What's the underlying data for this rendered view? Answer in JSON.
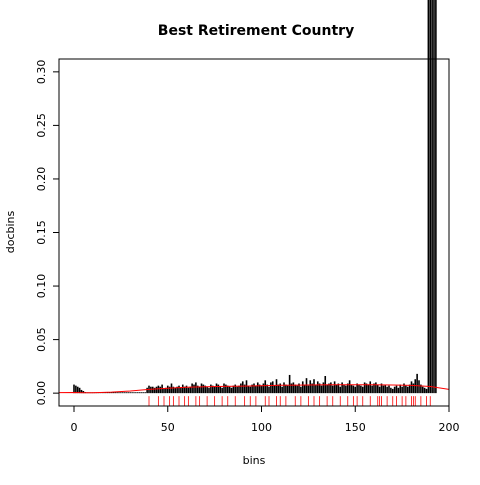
{
  "chart_data": {
    "type": "bar",
    "title": "Best Retirement Country",
    "xlabel": "bins",
    "ylabel": "docbins",
    "xlim": [
      -8,
      200
    ],
    "ylim": [
      -0.012,
      0.312
    ],
    "x_ticks": [
      0,
      50,
      100,
      150,
      200
    ],
    "x_tick_labels": [
      "0",
      "50",
      "100",
      "150",
      "200"
    ],
    "y_ticks": [
      0.0,
      0.05,
      0.1,
      0.15,
      0.2,
      0.25,
      0.3
    ],
    "y_tick_labels": [
      "0.00",
      "0.05",
      "0.10",
      "0.15",
      "0.20",
      "0.25",
      "0.30"
    ],
    "bar_color": "#000000",
    "curve_color": "#ff0000",
    "rug_color": "#ff0000",
    "bins_x": [
      0,
      1,
      2,
      3,
      4,
      5,
      6,
      7,
      8,
      9,
      10,
      11,
      12,
      13,
      14,
      15,
      16,
      17,
      18,
      19,
      20,
      21,
      22,
      23,
      24,
      25,
      26,
      27,
      28,
      29,
      30,
      31,
      32,
      33,
      34,
      35,
      36,
      37,
      38,
      39,
      40,
      41,
      42,
      43,
      44,
      45,
      46,
      47,
      48,
      49,
      50,
      51,
      52,
      53,
      54,
      55,
      56,
      57,
      58,
      59,
      60,
      61,
      62,
      63,
      64,
      65,
      66,
      67,
      68,
      69,
      70,
      71,
      72,
      73,
      74,
      75,
      76,
      77,
      78,
      79,
      80,
      81,
      82,
      83,
      84,
      85,
      86,
      87,
      88,
      89,
      90,
      91,
      92,
      93,
      94,
      95,
      96,
      97,
      98,
      99,
      100,
      101,
      102,
      103,
      104,
      105,
      106,
      107,
      108,
      109,
      110,
      111,
      112,
      113,
      114,
      115,
      116,
      117,
      118,
      119,
      120,
      121,
      122,
      123,
      124,
      125,
      126,
      127,
      128,
      129,
      130,
      131,
      132,
      133,
      134,
      135,
      136,
      137,
      138,
      139,
      140,
      141,
      142,
      143,
      144,
      145,
      146,
      147,
      148,
      149,
      150,
      151,
      152,
      153,
      154,
      155,
      156,
      157,
      158,
      159,
      160,
      161,
      162,
      163,
      164,
      165,
      166,
      167,
      168,
      169,
      170,
      171,
      172,
      173,
      174,
      175,
      176,
      177,
      178,
      179,
      180,
      181,
      182,
      183,
      184,
      185,
      186,
      187,
      188,
      189,
      190,
      191,
      192,
      193
    ],
    "bins_y": [
      0.008,
      0.007,
      0.006,
      0.005,
      0.003,
      0.002,
      0.001,
      0.0008,
      0.0008,
      0.0008,
      0.0008,
      0.0008,
      0.0008,
      0.0008,
      0.0008,
      0.0008,
      0.0008,
      0.0008,
      0.0008,
      0.0008,
      0.0008,
      0.0008,
      0.0008,
      0.0008,
      0.0008,
      0.0008,
      0.0008,
      0.0008,
      0.0008,
      0.0008,
      0.0008,
      0.0008,
      0.0008,
      0.0008,
      0.0008,
      0.0008,
      0.0008,
      0.0008,
      0.0008,
      0.005,
      0.007,
      0.006,
      0.006,
      0.005,
      0.006,
      0.007,
      0.006,
      0.008,
      0.004,
      0.005,
      0.007,
      0.006,
      0.009,
      0.006,
      0.005,
      0.006,
      0.007,
      0.005,
      0.008,
      0.006,
      0.007,
      0.005,
      0.006,
      0.009,
      0.008,
      0.01,
      0.007,
      0.006,
      0.009,
      0.008,
      0.007,
      0.006,
      0.005,
      0.008,
      0.007,
      0.006,
      0.009,
      0.008,
      0.006,
      0.005,
      0.009,
      0.008,
      0.007,
      0.006,
      0.005,
      0.007,
      0.008,
      0.006,
      0.007,
      0.009,
      0.011,
      0.008,
      0.012,
      0.007,
      0.006,
      0.008,
      0.009,
      0.007,
      0.01,
      0.008,
      0.007,
      0.009,
      0.012,
      0.008,
      0.006,
      0.01,
      0.011,
      0.007,
      0.013,
      0.008,
      0.009,
      0.006,
      0.01,
      0.008,
      0.007,
      0.017,
      0.009,
      0.01,
      0.008,
      0.007,
      0.009,
      0.006,
      0.011,
      0.008,
      0.014,
      0.007,
      0.012,
      0.009,
      0.013,
      0.008,
      0.011,
      0.009,
      0.007,
      0.01,
      0.016,
      0.008,
      0.009,
      0.01,
      0.007,
      0.011,
      0.008,
      0.009,
      0.006,
      0.01,
      0.008,
      0.007,
      0.009,
      0.012,
      0.008,
      0.007,
      0.006,
      0.009,
      0.008,
      0.007,
      0.006,
      0.01,
      0.009,
      0.008,
      0.011,
      0.007,
      0.009,
      0.01,
      0.008,
      0.006,
      0.009,
      0.007,
      0.008,
      0.006,
      0.007,
      0.005,
      0.004,
      0.006,
      0.007,
      0.005,
      0.008,
      0.006,
      0.009,
      0.007,
      0.006,
      0.008,
      0.011,
      0.009,
      0.013,
      0.018,
      0.012,
      0.008,
      0.006,
      0.005,
      0.004
    ],
    "curve_x": [
      -8,
      0,
      5,
      10,
      20,
      30,
      40,
      50,
      60,
      70,
      80,
      90,
      100,
      110,
      120,
      130,
      140,
      150,
      160,
      170,
      180,
      190,
      200
    ],
    "curve_y": [
      0.0005,
      0.0006,
      0.0003,
      0.0004,
      0.001,
      0.002,
      0.0035,
      0.0045,
      0.0055,
      0.006,
      0.0063,
      0.0066,
      0.007,
      0.0073,
      0.0075,
      0.0077,
      0.0078,
      0.0078,
      0.0078,
      0.0076,
      0.0072,
      0.0062,
      0.0035
    ],
    "rug_x": [
      40,
      45,
      48,
      51,
      53,
      56,
      59,
      61,
      65,
      67,
      71,
      75,
      79,
      82,
      86,
      91,
      94,
      97,
      102,
      104,
      108,
      110,
      113,
      118,
      121,
      125,
      128,
      131,
      135,
      138,
      142,
      146,
      149,
      151,
      154,
      158,
      162,
      163,
      164,
      167,
      170,
      172,
      175,
      177,
      180,
      181,
      182,
      185,
      188,
      190
    ]
  }
}
